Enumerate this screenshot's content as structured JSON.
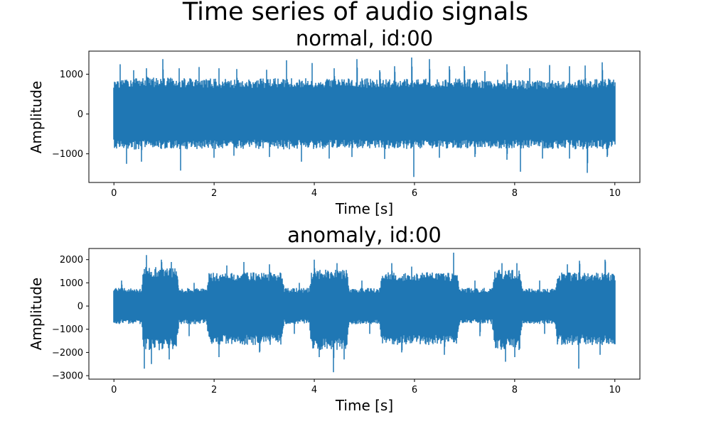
{
  "figure_title": "Time series of audio signals",
  "chart_data": [
    {
      "type": "line",
      "title": "normal, id:00",
      "xlabel": "Time [s]",
      "ylabel": "Amplitude",
      "xlim": [
        -0.5,
        10.5
      ],
      "ylim": [
        -1720,
        1580
      ],
      "xticks": [
        0,
        2,
        4,
        6,
        8,
        10
      ],
      "yticks": [
        -1000,
        0,
        1000
      ],
      "series": [
        {
          "color": "#1f77b4",
          "envelope": {
            "t": [
              0.0,
              0.5,
              1.0,
              1.5,
              2.0,
              2.5,
              3.0,
              3.5,
              4.0,
              4.5,
              5.0,
              5.5,
              6.0,
              6.5,
              7.0,
              7.5,
              8.0,
              8.5,
              9.0,
              9.5,
              10.0
            ],
            "upper": [
              800,
              820,
              830,
              810,
              800,
              790,
              800,
              820,
              810,
              800,
              800,
              780,
              790,
              800,
              800,
              780,
              760,
              760,
              780,
              790,
              800
            ],
            "lower": [
              -780,
              -800,
              -800,
              -790,
              -790,
              -780,
              -790,
              -800,
              -800,
              -790,
              -780,
              -790,
              -790,
              -780,
              -780,
              -790,
              -780,
              -780,
              -790,
              -800,
              -790
            ]
          },
          "spikes": [
            {
              "t": 0.12,
              "v": 1250
            },
            {
              "t": 0.4,
              "v": 1100
            },
            {
              "t": 0.65,
              "v": 1150
            },
            {
              "t": 0.98,
              "v": 1380
            },
            {
              "t": 1.3,
              "v": 1150
            },
            {
              "t": 1.7,
              "v": 1180
            },
            {
              "t": 2.1,
              "v": 1150
            },
            {
              "t": 2.45,
              "v": 1130
            },
            {
              "t": 3.05,
              "v": 1110
            },
            {
              "t": 3.45,
              "v": 1350
            },
            {
              "t": 3.95,
              "v": 1280
            },
            {
              "t": 4.4,
              "v": 1150
            },
            {
              "t": 4.85,
              "v": 1380
            },
            {
              "t": 5.3,
              "v": 1100
            },
            {
              "t": 5.6,
              "v": 1200
            },
            {
              "t": 5.95,
              "v": 1420
            },
            {
              "t": 6.3,
              "v": 1380
            },
            {
              "t": 6.7,
              "v": 1200
            },
            {
              "t": 7.0,
              "v": 1200
            },
            {
              "t": 7.4,
              "v": 1080
            },
            {
              "t": 7.85,
              "v": 1250
            },
            {
              "t": 8.3,
              "v": 1150
            },
            {
              "t": 8.7,
              "v": 1230
            },
            {
              "t": 9.1,
              "v": 1200
            },
            {
              "t": 9.4,
              "v": 1220
            },
            {
              "t": 9.75,
              "v": 1300
            },
            {
              "t": 0.25,
              "v": -1250
            },
            {
              "t": 0.55,
              "v": -1200
            },
            {
              "t": 1.33,
              "v": -1420
            },
            {
              "t": 2.0,
              "v": -1100
            },
            {
              "t": 2.4,
              "v": -1050
            },
            {
              "t": 3.1,
              "v": -1080
            },
            {
              "t": 3.75,
              "v": -1200
            },
            {
              "t": 4.3,
              "v": -1120
            },
            {
              "t": 4.75,
              "v": -1080
            },
            {
              "t": 5.4,
              "v": -1130
            },
            {
              "t": 5.98,
              "v": -1580
            },
            {
              "t": 6.5,
              "v": -1100
            },
            {
              "t": 7.2,
              "v": -1080
            },
            {
              "t": 7.85,
              "v": -1150
            },
            {
              "t": 8.12,
              "v": -1450
            },
            {
              "t": 8.55,
              "v": -1120
            },
            {
              "t": 9.1,
              "v": -1120
            },
            {
              "t": 9.45,
              "v": -1480
            },
            {
              "t": 9.85,
              "v": -1080
            }
          ]
        }
      ]
    },
    {
      "type": "line",
      "title": "anomaly, id:00",
      "xlabel": "Time [s]",
      "ylabel": "Amplitude",
      "xlim": [
        -0.5,
        10.5
      ],
      "ylim": [
        -3150,
        2480
      ],
      "xticks": [
        0,
        2,
        4,
        6,
        8,
        10
      ],
      "yticks": [
        -3000,
        -2000,
        -1000,
        0,
        1000,
        2000
      ],
      "series": [
        {
          "color": "#1f77b4",
          "envelope": {
            "t": [
              0.0,
              0.55,
              0.6,
              1.25,
              1.3,
              1.85,
              1.9,
              3.35,
              3.4,
              3.9,
              3.95,
              4.65,
              4.7,
              5.3,
              5.35,
              6.85,
              6.9,
              7.55,
              7.6,
              8.1,
              8.15,
              8.8,
              8.85,
              10.0
            ],
            "upper": [
              700,
              700,
              1500,
              1500,
              700,
              700,
              1300,
              1300,
              700,
              700,
              1400,
              1400,
              700,
              700,
              1300,
              1300,
              700,
              700,
              1400,
              1400,
              700,
              700,
              1300,
              1300
            ],
            "lower": [
              -700,
              -700,
              -1700,
              -1700,
              -700,
              -700,
              -1500,
              -1500,
              -700,
              -700,
              -1700,
              -1700,
              -700,
              -700,
              -1500,
              -1500,
              -700,
              -700,
              -1700,
              -1700,
              -700,
              -700,
              -1500,
              -1500
            ]
          },
          "spikes": [
            {
              "t": 0.15,
              "v": 1100
            },
            {
              "t": 0.65,
              "v": 2200
            },
            {
              "t": 0.95,
              "v": 2000
            },
            {
              "t": 1.15,
              "v": 1900
            },
            {
              "t": 1.6,
              "v": 1000
            },
            {
              "t": 2.25,
              "v": 1750
            },
            {
              "t": 2.6,
              "v": 1900
            },
            {
              "t": 3.1,
              "v": 1800
            },
            {
              "t": 3.7,
              "v": 1000
            },
            {
              "t": 4.0,
              "v": 2000
            },
            {
              "t": 4.45,
              "v": 1850
            },
            {
              "t": 4.95,
              "v": 1100
            },
            {
              "t": 5.55,
              "v": 1850
            },
            {
              "t": 5.95,
              "v": 1700
            },
            {
              "t": 6.78,
              "v": 2300
            },
            {
              "t": 7.2,
              "v": 1100
            },
            {
              "t": 7.75,
              "v": 1850
            },
            {
              "t": 8.05,
              "v": 1850
            },
            {
              "t": 8.5,
              "v": 1100
            },
            {
              "t": 9.05,
              "v": 1800
            },
            {
              "t": 9.3,
              "v": 1950
            },
            {
              "t": 9.8,
              "v": 2000
            },
            {
              "t": 0.6,
              "v": -2700
            },
            {
              "t": 0.75,
              "v": -2500
            },
            {
              "t": 1.1,
              "v": -2300
            },
            {
              "t": 1.5,
              "v": -1300
            },
            {
              "t": 2.1,
              "v": -2200
            },
            {
              "t": 2.9,
              "v": -2000
            },
            {
              "t": 3.6,
              "v": -1200
            },
            {
              "t": 4.1,
              "v": -2200
            },
            {
              "t": 4.38,
              "v": -2850
            },
            {
              "t": 4.6,
              "v": -2300
            },
            {
              "t": 5.1,
              "v": -1200
            },
            {
              "t": 5.75,
              "v": -2000
            },
            {
              "t": 6.6,
              "v": -2100
            },
            {
              "t": 7.3,
              "v": -1300
            },
            {
              "t": 7.82,
              "v": -2400
            },
            {
              "t": 8.0,
              "v": -2200
            },
            {
              "t": 8.6,
              "v": -1200
            },
            {
              "t": 9.28,
              "v": -2700
            },
            {
              "t": 9.7,
              "v": -2100
            }
          ]
        }
      ]
    }
  ]
}
